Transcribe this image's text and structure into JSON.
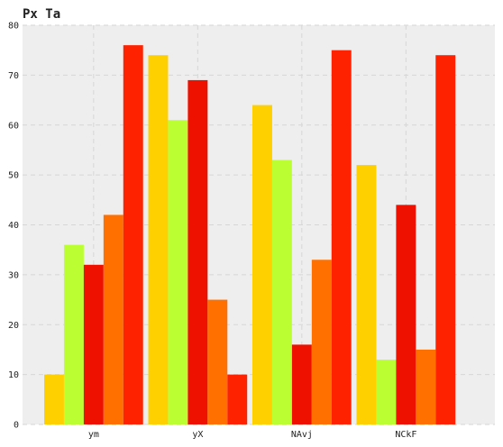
{
  "chart_data": {
    "type": "bar",
    "title": "Px Ta",
    "xlabel": "",
    "ylabel": "",
    "categories": [
      "ym",
      "yX",
      "NAvj",
      "NCkF"
    ],
    "series": [
      {
        "color": "#ffd000",
        "values": [
          10,
          74,
          64,
          52
        ]
      },
      {
        "color": "#bbff33",
        "values": [
          36,
          61,
          53,
          13
        ]
      },
      {
        "color": "#ee1100",
        "values": [
          32,
          69,
          16,
          44
        ]
      },
      {
        "color": "#ff7000",
        "values": [
          42,
          25,
          33,
          15
        ]
      },
      {
        "color": "#ff2200",
        "values": [
          76,
          10,
          75,
          74
        ]
      }
    ],
    "ylim": [
      0,
      80
    ],
    "yticks": [
      0,
      10,
      20,
      30,
      40,
      50,
      60,
      70,
      80
    ],
    "grid": true,
    "legend": "none",
    "background": "#eeeeee"
  }
}
